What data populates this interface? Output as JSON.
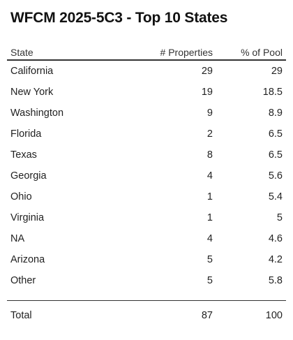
{
  "title": "WFCM 2025-5C3 - Top 10 States",
  "columns": {
    "state": "State",
    "properties": "# Properties",
    "pool": "% of Pool"
  },
  "rows": [
    {
      "state": "California",
      "properties": "29",
      "pool": "29"
    },
    {
      "state": "New York",
      "properties": "19",
      "pool": "18.5"
    },
    {
      "state": "Washington",
      "properties": "9",
      "pool": "8.9"
    },
    {
      "state": "Florida",
      "properties": "2",
      "pool": "6.5"
    },
    {
      "state": "Texas",
      "properties": "8",
      "pool": "6.5"
    },
    {
      "state": "Georgia",
      "properties": "4",
      "pool": "5.6"
    },
    {
      "state": "Ohio",
      "properties": "1",
      "pool": "5.4"
    },
    {
      "state": "Virginia",
      "properties": "1",
      "pool": "5"
    },
    {
      "state": "NA",
      "properties": "4",
      "pool": "4.6"
    },
    {
      "state": "Arizona",
      "properties": "5",
      "pool": "4.2"
    },
    {
      "state": "Other",
      "properties": "5",
      "pool": "5.8"
    }
  ],
  "total": {
    "label": "Total",
    "properties": "87",
    "pool": "100"
  }
}
